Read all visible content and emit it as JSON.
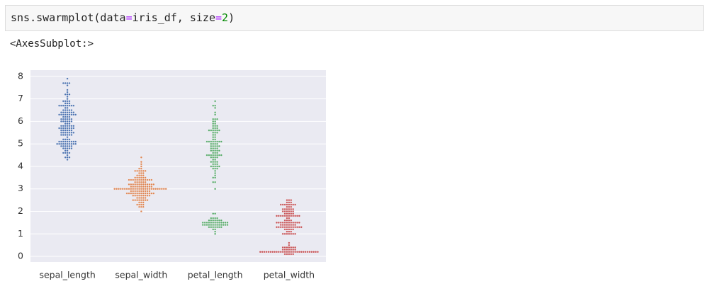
{
  "code_cell": {
    "tokens": [
      "sns.swarmplot(data",
      "=",
      "iris_df, size",
      "=",
      "2",
      ")"
    ]
  },
  "output_text": "<AxesSubplot:>",
  "chart_data": {
    "type": "swarm",
    "categories": [
      "sepal_length",
      "sepal_width",
      "petal_length",
      "petal_width"
    ],
    "colors": [
      "#4c72b0",
      "#dd8452",
      "#55a868",
      "#c44e52"
    ],
    "values": [
      [
        4.3,
        4.4,
        4.4,
        4.4,
        4.5,
        4.6,
        4.6,
        4.6,
        4.6,
        4.7,
        4.7,
        4.8,
        4.8,
        4.8,
        4.8,
        4.8,
        4.9,
        4.9,
        4.9,
        4.9,
        4.9,
        4.9,
        5,
        5,
        5,
        5,
        5,
        5,
        5,
        5,
        5,
        5,
        5.1,
        5.1,
        5.1,
        5.1,
        5.1,
        5.1,
        5.1,
        5.1,
        5.1,
        5.2,
        5.2,
        5.2,
        5.2,
        5.3,
        5.4,
        5.4,
        5.4,
        5.4,
        5.4,
        5.4,
        5.5,
        5.5,
        5.5,
        5.5,
        5.5,
        5.5,
        5.5,
        5.6,
        5.6,
        5.6,
        5.6,
        5.6,
        5.6,
        5.7,
        5.7,
        5.7,
        5.7,
        5.7,
        5.7,
        5.7,
        5.7,
        5.8,
        5.8,
        5.8,
        5.8,
        5.8,
        5.8,
        5.8,
        5.9,
        5.9,
        5.9,
        6,
        6,
        6,
        6,
        6,
        6,
        6.1,
        6.1,
        6.1,
        6.1,
        6.1,
        6.1,
        6.2,
        6.2,
        6.2,
        6.2,
        6.3,
        6.3,
        6.3,
        6.3,
        6.3,
        6.3,
        6.3,
        6.3,
        6.3,
        6.4,
        6.4,
        6.4,
        6.4,
        6.4,
        6.4,
        6.4,
        6.5,
        6.5,
        6.5,
        6.5,
        6.5,
        6.6,
        6.6,
        6.7,
        6.7,
        6.7,
        6.7,
        6.7,
        6.7,
        6.7,
        6.7,
        6.8,
        6.8,
        6.8,
        6.9,
        6.9,
        6.9,
        6.9,
        7,
        7.1,
        7.2,
        7.2,
        7.2,
        7.3,
        7.4,
        7.6,
        7.7,
        7.7,
        7.7,
        7.7,
        7.9
      ],
      [
        2,
        2.2,
        2.2,
        2.2,
        2.3,
        2.3,
        2.3,
        2.3,
        2.4,
        2.4,
        2.4,
        2.5,
        2.5,
        2.5,
        2.5,
        2.5,
        2.5,
        2.5,
        2.5,
        2.6,
        2.6,
        2.6,
        2.6,
        2.6,
        2.7,
        2.7,
        2.7,
        2.7,
        2.7,
        2.7,
        2.7,
        2.7,
        2.7,
        2.8,
        2.8,
        2.8,
        2.8,
        2.8,
        2.8,
        2.8,
        2.8,
        2.8,
        2.8,
        2.8,
        2.8,
        2.8,
        2.8,
        2.9,
        2.9,
        2.9,
        2.9,
        2.9,
        2.9,
        2.9,
        2.9,
        2.9,
        2.9,
        3,
        3,
        3,
        3,
        3,
        3,
        3,
        3,
        3,
        3,
        3,
        3,
        3,
        3,
        3,
        3,
        3,
        3,
        3,
        3,
        3,
        3,
        3,
        3,
        3,
        3,
        3.1,
        3.1,
        3.1,
        3.1,
        3.1,
        3.1,
        3.1,
        3.1,
        3.1,
        3.1,
        3.1,
        3.2,
        3.2,
        3.2,
        3.2,
        3.2,
        3.2,
        3.2,
        3.2,
        3.2,
        3.2,
        3.2,
        3.2,
        3.2,
        3.3,
        3.3,
        3.3,
        3.3,
        3.3,
        3.3,
        3.4,
        3.4,
        3.4,
        3.4,
        3.4,
        3.4,
        3.4,
        3.4,
        3.4,
        3.4,
        3.4,
        3.4,
        3.5,
        3.5,
        3.5,
        3.5,
        3.5,
        3.5,
        3.6,
        3.6,
        3.6,
        3.6,
        3.7,
        3.7,
        3.7,
        3.8,
        3.8,
        3.8,
        3.8,
        3.8,
        3.8,
        3.9,
        3.9,
        4,
        4.1,
        4.2,
        4.4
      ],
      [
        1,
        1.1,
        1.2,
        1.2,
        1.3,
        1.3,
        1.3,
        1.3,
        1.3,
        1.3,
        1.3,
        1.4,
        1.4,
        1.4,
        1.4,
        1.4,
        1.4,
        1.4,
        1.4,
        1.4,
        1.4,
        1.4,
        1.4,
        1.4,
        1.5,
        1.5,
        1.5,
        1.5,
        1.5,
        1.5,
        1.5,
        1.5,
        1.5,
        1.5,
        1.5,
        1.5,
        1.5,
        1.6,
        1.6,
        1.6,
        1.6,
        1.6,
        1.6,
        1.6,
        1.7,
        1.7,
        1.7,
        1.7,
        1.9,
        1.9,
        3,
        3.3,
        3.3,
        3.5,
        3.5,
        3.6,
        3.7,
        3.8,
        3.9,
        3.9,
        3.9,
        4,
        4,
        4,
        4,
        4,
        4.1,
        4.1,
        4.1,
        4.2,
        4.2,
        4.2,
        4.2,
        4.3,
        4.3,
        4.4,
        4.4,
        4.4,
        4.4,
        4.5,
        4.5,
        4.5,
        4.5,
        4.5,
        4.5,
        4.5,
        4.5,
        4.6,
        4.6,
        4.6,
        4.7,
        4.7,
        4.7,
        4.7,
        4.7,
        4.8,
        4.8,
        4.8,
        4.8,
        4.9,
        4.9,
        4.9,
        4.9,
        4.9,
        5,
        5,
        5,
        5,
        5.1,
        5.1,
        5.1,
        5.1,
        5.1,
        5.1,
        5.1,
        5.1,
        5.2,
        5.2,
        5.3,
        5.3,
        5.4,
        5.4,
        5.5,
        5.5,
        5.5,
        5.6,
        5.6,
        5.6,
        5.6,
        5.6,
        5.6,
        5.7,
        5.7,
        5.7,
        5.8,
        5.8,
        5.8,
        5.9,
        5.9,
        6,
        6,
        6.1,
        6.1,
        6.1,
        6.3,
        6.4,
        6.6,
        6.7,
        6.7,
        6.9
      ],
      [
        0.1,
        0.1,
        0.1,
        0.1,
        0.1,
        0.2,
        0.2,
        0.2,
        0.2,
        0.2,
        0.2,
        0.2,
        0.2,
        0.2,
        0.2,
        0.2,
        0.2,
        0.2,
        0.2,
        0.2,
        0.2,
        0.2,
        0.2,
        0.2,
        0.2,
        0.2,
        0.2,
        0.2,
        0.2,
        0.2,
        0.2,
        0.2,
        0.2,
        0.2,
        0.3,
        0.3,
        0.3,
        0.3,
        0.3,
        0.3,
        0.3,
        0.4,
        0.4,
        0.4,
        0.4,
        0.4,
        0.4,
        0.4,
        0.5,
        0.6,
        1,
        1,
        1,
        1,
        1,
        1,
        1,
        1.1,
        1.1,
        1.1,
        1.2,
        1.2,
        1.2,
        1.2,
        1.2,
        1.3,
        1.3,
        1.3,
        1.3,
        1.3,
        1.3,
        1.3,
        1.3,
        1.3,
        1.3,
        1.3,
        1.3,
        1.3,
        1.4,
        1.4,
        1.4,
        1.4,
        1.4,
        1.4,
        1.4,
        1.4,
        1.5,
        1.5,
        1.5,
        1.5,
        1.5,
        1.5,
        1.5,
        1.5,
        1.5,
        1.5,
        1.5,
        1.5,
        1.6,
        1.6,
        1.6,
        1.6,
        1.7,
        1.7,
        1.8,
        1.8,
        1.8,
        1.8,
        1.8,
        1.8,
        1.8,
        1.8,
        1.8,
        1.8,
        1.8,
        1.8,
        1.9,
        1.9,
        1.9,
        1.9,
        1.9,
        2,
        2,
        2,
        2,
        2,
        2,
        2.1,
        2.1,
        2.1,
        2.1,
        2.1,
        2.1,
        2.2,
        2.2,
        2.2,
        2.3,
        2.3,
        2.3,
        2.3,
        2.3,
        2.3,
        2.3,
        2.3,
        2.4,
        2.4,
        2.4,
        2.5,
        2.5,
        2.5
      ]
    ],
    "ylim": [
      -0.25,
      8.28
    ],
    "yticks": [
      0,
      1,
      2,
      3,
      4,
      5,
      6,
      7,
      8
    ],
    "xlim": [
      -0.5,
      3.5
    ],
    "grid": true
  }
}
